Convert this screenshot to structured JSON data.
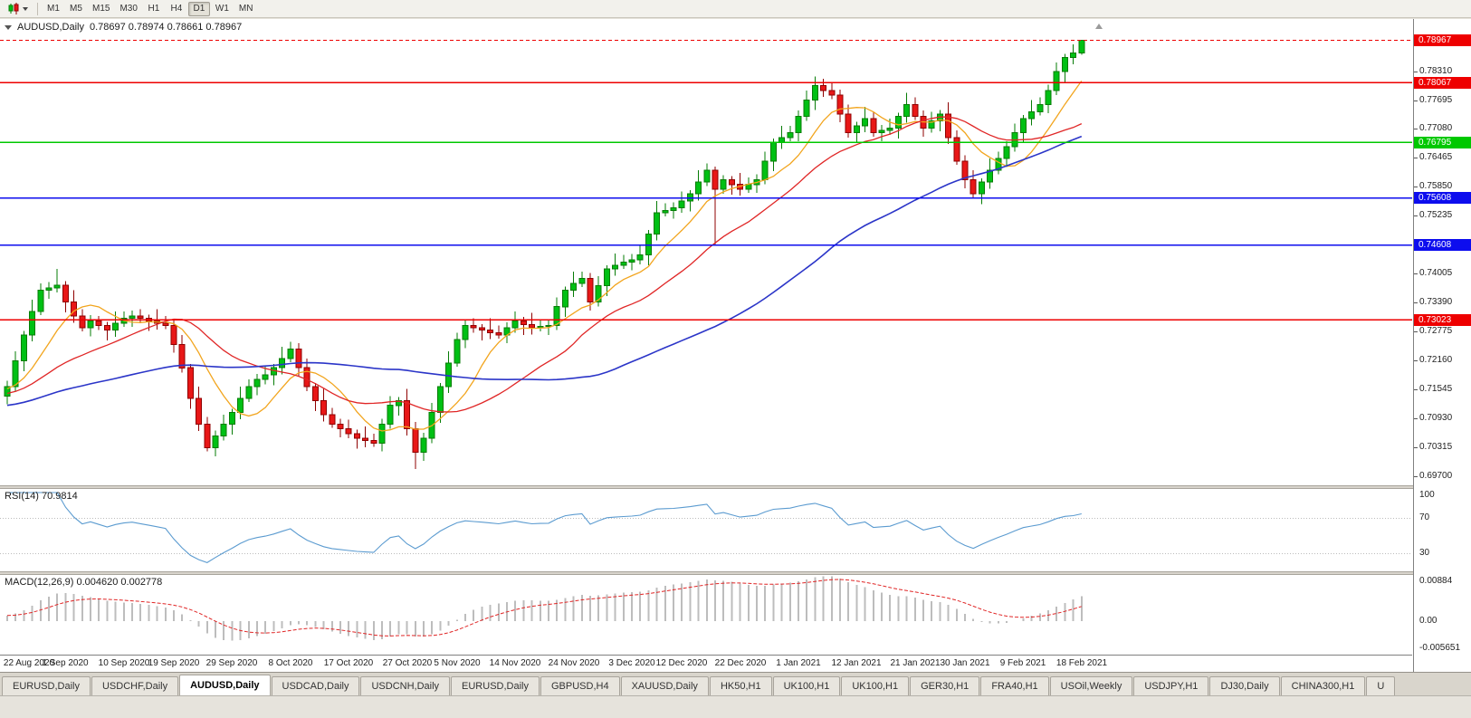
{
  "toolbar": {
    "timeframes": [
      "M1",
      "M5",
      "M15",
      "M30",
      "H1",
      "H4",
      "D1",
      "W1",
      "MN"
    ],
    "active_timeframe": "D1"
  },
  "chart_window": {
    "title": "AUDUSD,Daily",
    "ohlc": "0.78697 0.78974 0.78661 0.78967"
  },
  "chart_data": {
    "type": "candlestick",
    "symbol": "AUDUSD",
    "timeframe": "Daily",
    "open": "0.78697",
    "high": "0.78974",
    "low": "0.78661",
    "close": "0.78967",
    "price_range": {
      "max": 0.7942,
      "min": 0.695
    },
    "price_axis_ticks": [
      "0.78310",
      "0.77695",
      "0.77080",
      "0.76465",
      "0.75850",
      "0.75235",
      "0.74620",
      "0.74005",
      "0.73390",
      "0.72775",
      "0.72160",
      "0.71545",
      "0.70930",
      "0.70315",
      "0.69700"
    ],
    "x_labels": [
      "22 Aug 2020",
      "1 Sep 2020",
      "10 Sep 2020",
      "19 Sep 2020",
      "29 Sep 2020",
      "8 Oct 2020",
      "17 Oct 2020",
      "27 Oct 2020",
      "5 Nov 2020",
      "14 Nov 2020",
      "24 Nov 2020",
      "3 Dec 2020",
      "12 Dec 2020",
      "22 Dec 2020",
      "1 Jan 2021",
      "12 Jan 2021",
      "21 Jan 2021",
      "30 Jan 2021",
      "9 Feb 2021",
      "18 Feb 2021"
    ],
    "colors": {
      "up_fill": "#00c014",
      "up_stroke": "#067c06",
      "down_fill": "#e81717",
      "down_stroke": "#8f0000"
    },
    "moving_averages": [
      {
        "name": "fast-ma",
        "period": 8,
        "color": "#f2a51e",
        "width": 1.3
      },
      {
        "name": "medium-ma",
        "period": 20,
        "color": "#e02626",
        "width": 1.3
      },
      {
        "name": "slow-ma",
        "period": 50,
        "color": "#2b35c8",
        "width": 1.6
      }
    ],
    "horizontal_lines": [
      {
        "price": 0.78067,
        "label": "0.78067",
        "color": "#ee0000"
      },
      {
        "price": 0.76795,
        "label": "0.76795",
        "color": "#00c800"
      },
      {
        "price": 0.75608,
        "label": "0.75608",
        "color": "#0d0dee"
      },
      {
        "price": 0.74608,
        "label": "0.74608",
        "color": "#0d0dee"
      },
      {
        "price": 0.73023,
        "label": "0.73023",
        "color": "#ee0000"
      }
    ],
    "current_price": {
      "value": 0.78967,
      "label": "0.78967",
      "color": "#ee0000"
    },
    "candles": [
      [
        0.714,
        0.7172,
        0.7122,
        0.716
      ],
      [
        0.716,
        0.7235,
        0.715,
        0.7215
      ],
      [
        0.7215,
        0.7278,
        0.7193,
        0.727
      ],
      [
        0.727,
        0.7345,
        0.7256,
        0.732
      ],
      [
        0.732,
        0.738,
        0.7312,
        0.7365
      ],
      [
        0.7365,
        0.7382,
        0.7347,
        0.737
      ],
      [
        0.737,
        0.741,
        0.736,
        0.7376
      ],
      [
        0.7376,
        0.7384,
        0.7318,
        0.734
      ],
      [
        0.734,
        0.7365,
        0.7296,
        0.731
      ],
      [
        0.731,
        0.7325,
        0.7277,
        0.7285
      ],
      [
        0.7285,
        0.7312,
        0.7267,
        0.73
      ],
      [
        0.73,
        0.731,
        0.728,
        0.729
      ],
      [
        0.729,
        0.7298,
        0.7258,
        0.728
      ],
      [
        0.728,
        0.732,
        0.7266,
        0.7295
      ],
      [
        0.7295,
        0.732,
        0.7287,
        0.7305
      ],
      [
        0.7305,
        0.7322,
        0.7287,
        0.731
      ],
      [
        0.731,
        0.7325,
        0.7295,
        0.7305
      ],
      [
        0.7305,
        0.7313,
        0.7278,
        0.73
      ],
      [
        0.73,
        0.7325,
        0.7281,
        0.7295
      ],
      [
        0.7295,
        0.731,
        0.7282,
        0.729
      ],
      [
        0.729,
        0.7302,
        0.7232,
        0.725
      ],
      [
        0.725,
        0.727,
        0.719,
        0.72
      ],
      [
        0.72,
        0.7208,
        0.7113,
        0.7135
      ],
      [
        0.7135,
        0.716,
        0.7066,
        0.708
      ],
      [
        0.708,
        0.7095,
        0.7022,
        0.703
      ],
      [
        0.703,
        0.7067,
        0.7012,
        0.7055
      ],
      [
        0.7055,
        0.71,
        0.7045,
        0.708
      ],
      [
        0.708,
        0.7113,
        0.7058,
        0.7105
      ],
      [
        0.7105,
        0.716,
        0.7091,
        0.7135
      ],
      [
        0.7135,
        0.7175,
        0.7127,
        0.716
      ],
      [
        0.716,
        0.7187,
        0.7142,
        0.7175
      ],
      [
        0.7175,
        0.7205,
        0.7165,
        0.7185
      ],
      [
        0.7185,
        0.7208,
        0.7163,
        0.72
      ],
      [
        0.72,
        0.7245,
        0.7186,
        0.722
      ],
      [
        0.722,
        0.7255,
        0.7212,
        0.724
      ],
      [
        0.724,
        0.7252,
        0.7182,
        0.72
      ],
      [
        0.72,
        0.722,
        0.715,
        0.716
      ],
      [
        0.716,
        0.7168,
        0.7108,
        0.713
      ],
      [
        0.713,
        0.7155,
        0.7086,
        0.71
      ],
      [
        0.71,
        0.7115,
        0.7072,
        0.708
      ],
      [
        0.708,
        0.7092,
        0.7052,
        0.707
      ],
      [
        0.707,
        0.709,
        0.705,
        0.706
      ],
      [
        0.706,
        0.7068,
        0.7028,
        0.705
      ],
      [
        0.705,
        0.7075,
        0.7031,
        0.7045
      ],
      [
        0.7045,
        0.706,
        0.7032,
        0.704
      ],
      [
        0.704,
        0.7092,
        0.7022,
        0.708
      ],
      [
        0.708,
        0.714,
        0.707,
        0.712
      ],
      [
        0.712,
        0.7138,
        0.7098,
        0.713
      ],
      [
        0.713,
        0.7155,
        0.7056,
        0.707
      ],
      [
        0.707,
        0.7085,
        0.6985,
        0.702
      ],
      [
        0.702,
        0.7062,
        0.7002,
        0.705
      ],
      [
        0.705,
        0.7125,
        0.704,
        0.7105
      ],
      [
        0.7105,
        0.7168,
        0.7083,
        0.716
      ],
      [
        0.716,
        0.7235,
        0.7146,
        0.721
      ],
      [
        0.721,
        0.7275,
        0.7202,
        0.726
      ],
      [
        0.726,
        0.7302,
        0.7242,
        0.729
      ],
      [
        0.729,
        0.7305,
        0.7275,
        0.7285
      ],
      [
        0.7285,
        0.7293,
        0.7258,
        0.728
      ],
      [
        0.728,
        0.7305,
        0.7261,
        0.7275
      ],
      [
        0.7275,
        0.729,
        0.7262,
        0.727
      ],
      [
        0.727,
        0.7297,
        0.7252,
        0.7285
      ],
      [
        0.7285,
        0.732,
        0.7275,
        0.73
      ],
      [
        0.73,
        0.7308,
        0.727,
        0.7292
      ],
      [
        0.7292,
        0.7317,
        0.7271,
        0.7285
      ],
      [
        0.7285,
        0.7303,
        0.7277,
        0.7288
      ],
      [
        0.7288,
        0.7302,
        0.727,
        0.729
      ],
      [
        0.729,
        0.735,
        0.728,
        0.733
      ],
      [
        0.733,
        0.7373,
        0.7308,
        0.7365
      ],
      [
        0.7365,
        0.7405,
        0.7351,
        0.738
      ],
      [
        0.738,
        0.7405,
        0.7372,
        0.739
      ],
      [
        0.739,
        0.7402,
        0.7322,
        0.734
      ],
      [
        0.734,
        0.7395,
        0.733,
        0.7375
      ],
      [
        0.7375,
        0.7418,
        0.7353,
        0.741
      ],
      [
        0.741,
        0.7443,
        0.7396,
        0.7418
      ],
      [
        0.7418,
        0.744,
        0.741,
        0.7425
      ],
      [
        0.7425,
        0.7442,
        0.7407,
        0.743
      ],
      [
        0.743,
        0.746,
        0.742,
        0.744
      ],
      [
        0.744,
        0.7493,
        0.7418,
        0.7485
      ],
      [
        0.7485,
        0.7555,
        0.7471,
        0.753
      ],
      [
        0.753,
        0.755,
        0.7522,
        0.7535
      ],
      [
        0.7535,
        0.7552,
        0.7517,
        0.754
      ],
      [
        0.754,
        0.7575,
        0.753,
        0.7555
      ],
      [
        0.7555,
        0.7578,
        0.7533,
        0.757
      ],
      [
        0.757,
        0.762,
        0.7556,
        0.7595
      ],
      [
        0.7595,
        0.7635,
        0.7587,
        0.762
      ],
      [
        0.762,
        0.7628,
        0.7462,
        0.758
      ],
      [
        0.758,
        0.761,
        0.757,
        0.76
      ],
      [
        0.76,
        0.7608,
        0.7568,
        0.759
      ],
      [
        0.759,
        0.7615,
        0.7566,
        0.758
      ],
      [
        0.758,
        0.7605,
        0.7572,
        0.759
      ],
      [
        0.759,
        0.7612,
        0.7572,
        0.76
      ],
      [
        0.76,
        0.766,
        0.759,
        0.764
      ],
      [
        0.764,
        0.7688,
        0.7618,
        0.768
      ],
      [
        0.768,
        0.7715,
        0.7666,
        0.769
      ],
      [
        0.769,
        0.7715,
        0.7682,
        0.77
      ],
      [
        0.77,
        0.7747,
        0.7682,
        0.7735
      ],
      [
        0.7735,
        0.779,
        0.7725,
        0.777
      ],
      [
        0.777,
        0.782,
        0.7748,
        0.78
      ],
      [
        0.78,
        0.7815,
        0.7776,
        0.779
      ],
      [
        0.779,
        0.7805,
        0.7772,
        0.778
      ],
      [
        0.778,
        0.7792,
        0.7722,
        0.774
      ],
      [
        0.774,
        0.776,
        0.769,
        0.77
      ],
      [
        0.77,
        0.7723,
        0.7678,
        0.7715
      ],
      [
        0.7715,
        0.7755,
        0.7701,
        0.773
      ],
      [
        0.773,
        0.7745,
        0.7692,
        0.77
      ],
      [
        0.77,
        0.7717,
        0.7682,
        0.7705
      ],
      [
        0.7705,
        0.773,
        0.7695,
        0.771
      ],
      [
        0.771,
        0.7743,
        0.7688,
        0.7735
      ],
      [
        0.7735,
        0.7785,
        0.7721,
        0.776
      ],
      [
        0.776,
        0.7775,
        0.7727,
        0.7735
      ],
      [
        0.7735,
        0.7747,
        0.7692,
        0.771
      ],
      [
        0.771,
        0.7745,
        0.77,
        0.7725
      ],
      [
        0.7725,
        0.7748,
        0.7703,
        0.774
      ],
      [
        0.774,
        0.7765,
        0.7676,
        0.769
      ],
      [
        0.769,
        0.7705,
        0.7632,
        0.764
      ],
      [
        0.764,
        0.7652,
        0.7582,
        0.76
      ],
      [
        0.76,
        0.762,
        0.756,
        0.757
      ],
      [
        0.757,
        0.7603,
        0.7548,
        0.7595
      ],
      [
        0.7595,
        0.7645,
        0.7581,
        0.762
      ],
      [
        0.762,
        0.766,
        0.7612,
        0.7645
      ],
      [
        0.7645,
        0.7682,
        0.7627,
        0.767
      ],
      [
        0.767,
        0.772,
        0.766,
        0.77
      ],
      [
        0.77,
        0.7738,
        0.7678,
        0.773
      ],
      [
        0.773,
        0.777,
        0.7716,
        0.7745
      ],
      [
        0.7745,
        0.7775,
        0.7737,
        0.776
      ],
      [
        0.776,
        0.7802,
        0.7742,
        0.779
      ],
      [
        0.779,
        0.785,
        0.778,
        0.783
      ],
      [
        0.783,
        0.7868,
        0.7808,
        0.786
      ],
      [
        0.786,
        0.7888,
        0.7846,
        0.787
      ],
      [
        0.78697,
        0.78974,
        0.78661,
        0.78967
      ]
    ],
    "indicators": [
      {
        "name": "RSI",
        "label": "RSI(14) 70.9814",
        "period": 14,
        "value": "70.9814",
        "levels": [
          70,
          30
        ],
        "axis_labels": [
          "100",
          "70",
          "30"
        ],
        "axis_values": [
          100,
          70,
          30
        ],
        "line_color": "#5b9bd0",
        "level_color": "#bcbcbc"
      },
      {
        "name": "MACD",
        "label": "MACD(12,26,9) 0.004620 0.002778",
        "fast": 12,
        "slow": 26,
        "signal": 9,
        "values": "0.004620 0.002778",
        "axis_labels": [
          "0.00884",
          "0.00",
          "-0.005651"
        ],
        "range": {
          "max": 0.009,
          "min": -0.006
        },
        "histogram_color": "#bdbdbd",
        "signal_color": "#e02626"
      }
    ]
  },
  "tabs": {
    "active_index": 2,
    "items": [
      "EURUSD,Daily",
      "USDCHF,Daily",
      "AUDUSD,Daily",
      "USDCAD,Daily",
      "USDCNH,Daily",
      "EURUSD,Daily",
      "GBPUSD,H4",
      "XAUUSD,Daily",
      "HK50,H1",
      "UK100,H1",
      "UK100,H1",
      "GER30,H1",
      "FRA40,H1",
      "USOil,Weekly",
      "USDJPY,H1",
      "DJ30,Daily",
      "CHINA300,H1",
      "U"
    ]
  }
}
